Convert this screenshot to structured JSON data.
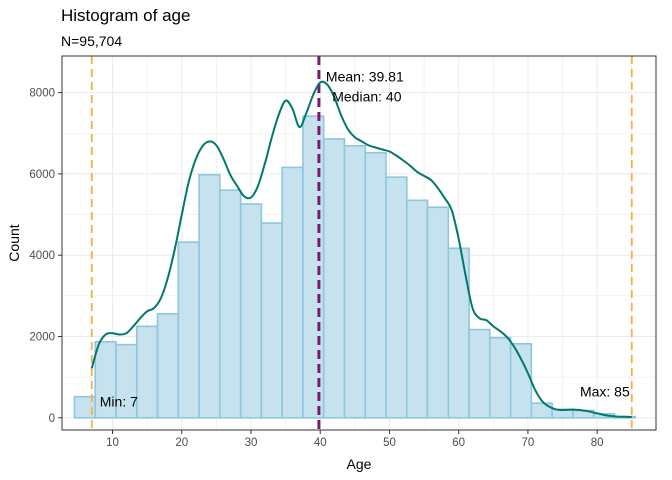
{
  "chart_data": {
    "type": "bar",
    "title": "Histogram of age",
    "subtitle": "N=95,704",
    "xlabel": "Age",
    "ylabel": "Count",
    "xlim": [
      2.7,
      88.5
    ],
    "ylim": [
      -300,
      8900
    ],
    "xticks": [
      10,
      20,
      30,
      40,
      50,
      60,
      70,
      80
    ],
    "yticks": [
      0,
      2000,
      4000,
      6000,
      8000
    ],
    "grid": true,
    "bin_width": 3,
    "bins_x": [
      6,
      9,
      12,
      15,
      18,
      21,
      24,
      27,
      30,
      33,
      36,
      39,
      42,
      45,
      48,
      51,
      54,
      57,
      60,
      63,
      66,
      69,
      72,
      75,
      78,
      81,
      84
    ],
    "values": [
      520,
      1870,
      1800,
      2250,
      2560,
      4320,
      5980,
      5600,
      5260,
      4790,
      6160,
      7420,
      6860,
      6690,
      6520,
      5920,
      5350,
      5180,
      4170,
      2170,
      1970,
      1820,
      360,
      210,
      180,
      100,
      30
    ],
    "density_curve": {
      "x": [
        7,
        8,
        9,
        10,
        11,
        12,
        13,
        14,
        15,
        16,
        17,
        18,
        19,
        20,
        21,
        22,
        23,
        24,
        25,
        26,
        27,
        28,
        29,
        30,
        31,
        32,
        33,
        34,
        35,
        36,
        37,
        38,
        39,
        40,
        41,
        42,
        43,
        44,
        45,
        46,
        47,
        48,
        49,
        50,
        51,
        52,
        53,
        54,
        55,
        56,
        57,
        58,
        59,
        60,
        61,
        62,
        63,
        64,
        65,
        66,
        67,
        68,
        69,
        70,
        71,
        72,
        73,
        74,
        75,
        76,
        77,
        78,
        79,
        80,
        81,
        82,
        83,
        84,
        85
      ],
      "y": [
        1220,
        1800,
        2050,
        2080,
        2050,
        2080,
        2250,
        2450,
        2620,
        2700,
        2950,
        3450,
        4150,
        5000,
        5800,
        6350,
        6680,
        6800,
        6700,
        6380,
        5980,
        5700,
        5450,
        5420,
        5700,
        6250,
        6900,
        7450,
        7800,
        7600,
        7150,
        7500,
        7950,
        8250,
        8200,
        7900,
        7450,
        7100,
        6900,
        6800,
        6700,
        6650,
        6600,
        6550,
        6450,
        6330,
        6200,
        6050,
        5950,
        5850,
        5650,
        5400,
        5100,
        4400,
        3500,
        2700,
        2450,
        2400,
        2250,
        2130,
        1980,
        1750,
        1450,
        1100,
        700,
        420,
        280,
        210,
        190,
        200,
        200,
        180,
        150,
        110,
        70,
        45,
        30,
        25,
        20
      ]
    },
    "reference_lines": [
      {
        "label": "Min: 7",
        "x": 7,
        "color": "#f5b041",
        "style": "dashed"
      },
      {
        "label": "Mean: 39.81",
        "x": 39.81,
        "color": "#7b1a6e",
        "style": "dashed"
      },
      {
        "label": "Median: 40",
        "x": 40,
        "color": "#7b1a6e",
        "style": "dashed"
      },
      {
        "label": "Max: 85",
        "x": 85,
        "color": "#f5b041",
        "style": "dashed"
      }
    ],
    "colors": {
      "bar_fill": "#c6e2ef",
      "bar_stroke": "#8ec6de",
      "density": "#00796b",
      "grid": "#ebebeb",
      "panel_border": "#333333"
    }
  }
}
